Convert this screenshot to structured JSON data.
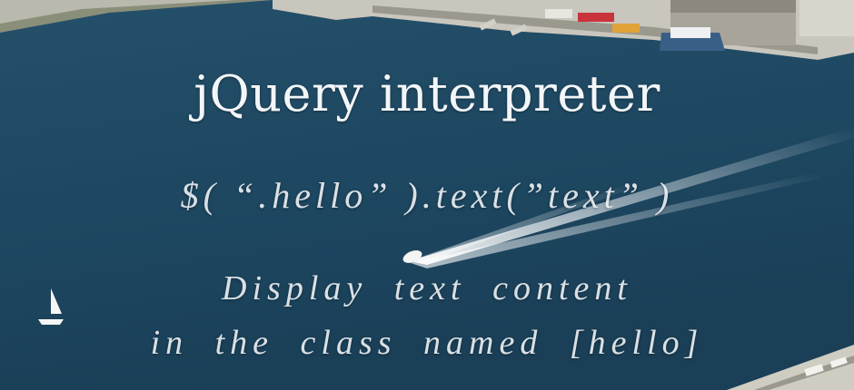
{
  "hero": {
    "title": "jQuery interpreter",
    "code": "$( “.hello” ).text(”text” )",
    "description_line1": "Display text content",
    "description_line2": "in the class named [hello]"
  }
}
